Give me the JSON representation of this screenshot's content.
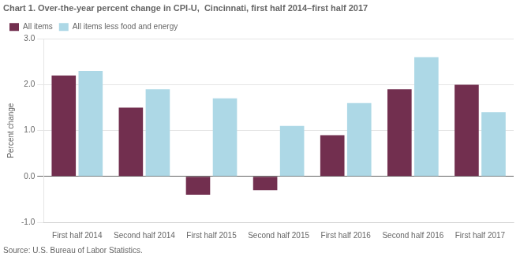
{
  "chart_data": {
    "type": "bar",
    "title": "Chart 1. Over-the-year percent change in CPI-U,  Cincinnati, first half 2014–first half 2017",
    "ylabel": "Percent change",
    "source": "Source: U.S. Bureau of Labor Statistics.",
    "categories": [
      "First half 2014",
      "Second half 2014",
      "First half 2015",
      "Second half 2015",
      "First half 2016",
      "Second half 2016",
      "First half 2017"
    ],
    "series": [
      {
        "name": "All items",
        "color": "#722F4F",
        "values": [
          2.2,
          1.5,
          -0.4,
          -0.3,
          0.9,
          1.9,
          2.0
        ]
      },
      {
        "name": "All items less food and energy",
        "color": "#ADD8E6",
        "values": [
          2.3,
          1.9,
          1.7,
          1.1,
          1.6,
          2.6,
          1.4
        ]
      }
    ],
    "ylim": [
      -1.0,
      3.0
    ],
    "yticks": [
      {
        "value": -1,
        "label": "-1.0"
      },
      {
        "value": 0,
        "label": "0.0"
      },
      {
        "value": 1,
        "label": "1.0"
      },
      {
        "value": 2,
        "label": "2.0"
      },
      {
        "value": 3,
        "label": "3.0"
      }
    ],
    "grid": true,
    "legend": "upper left"
  }
}
